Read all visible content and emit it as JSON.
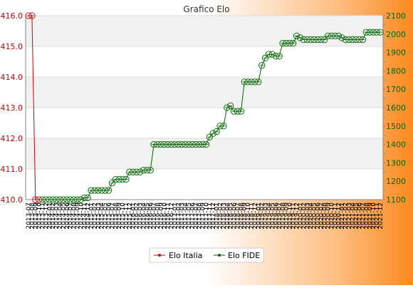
{
  "chart_data": {
    "type": "line",
    "title": "Grafico Elo",
    "left_axis": {
      "ylim": [
        410.0,
        416.0
      ],
      "ticks": [
        "410.0",
        "411.0",
        "412.0",
        "413.0",
        "414.0",
        "415.0",
        "416.0"
      ]
    },
    "right_axis": {
      "ylim": [
        1100,
        2100
      ],
      "ticks": [
        "1100",
        "1200",
        "1300",
        "1400",
        "1500",
        "1600",
        "1700",
        "1800",
        "1900",
        "2000",
        "2100"
      ]
    },
    "x_tick_labels": [
      "2013-07",
      "2013-08",
      "2013-09",
      "2013-10",
      "2013-11",
      "2013-12",
      "2014-01",
      "2014-02",
      "2014-03",
      "2014-04",
      "2014-05",
      "2014-06",
      "2014-07",
      "2014-08",
      "2014-09",
      "2014-10",
      "2014-11",
      "2014-12",
      "2015-01",
      "2015-02",
      "2015-03",
      "2015-04",
      "2015-05",
      "2015-06",
      "2015-07",
      "2015-08",
      "2015-09",
      "2015-10",
      "2015-11",
      "2015-12",
      "2016-01",
      "2016-02",
      "2016-03",
      "2016-04",
      "2016-05",
      "2016-06",
      "2016-07",
      "2016-08",
      "2016-09",
      "2016-10",
      "2016-11",
      "2016-12",
      "2017-01",
      "2017-02",
      "2017-03",
      "2017-04",
      "2017-05",
      "2017-06",
      "2017-07",
      "2017-08",
      "2017-09",
      "2017-10",
      "2017-11",
      "2017-12",
      "2018-01",
      "2018-02",
      "2018-03",
      "2018-04",
      "2018-05",
      "2018-06",
      "2018-07",
      "2018-08",
      "2018-09",
      "2018-10",
      "2018-11",
      "2018-12",
      "2019-01",
      "2019-02",
      "2019-03",
      "2019-04",
      "2019-05",
      "2019-06",
      "2019-07",
      "2019-08",
      "2019-09",
      "2019-10",
      "2019-11",
      "2019-12",
      "2020-01",
      "2020-02",
      "2020-03",
      "2020-04",
      "2020-05",
      "2020-06",
      "2020-07",
      "2020-08",
      "2020-09",
      "2020-10",
      "2020-11",
      "2020-12",
      "2021-01",
      "2021-02",
      "2021-03",
      "2021-04",
      "2021-05",
      "2021-06",
      "2021-07",
      "2021-08",
      "2021-09",
      "2021-10",
      "2021-11",
      "2021-12"
    ],
    "series": [
      {
        "name": "Elo Italia",
        "axis": "left",
        "color": "#cc0000",
        "x_index": [
          0,
          1,
          2,
          3
        ],
        "values": [
          416.0,
          416.0,
          410.0,
          410.0
        ]
      },
      {
        "name": "Elo FIDE",
        "axis": "right",
        "color": "#006600",
        "x_index": [
          4,
          5,
          6,
          7,
          8,
          9,
          10,
          11,
          12,
          13,
          14,
          15,
          16,
          17,
          18,
          19,
          20,
          21,
          22,
          23,
          24,
          25,
          26,
          27,
          28,
          29,
          30,
          31,
          32,
          33,
          34,
          35,
          36,
          37,
          38,
          39,
          40,
          41,
          42,
          43,
          44,
          45,
          46,
          47,
          48,
          49,
          50,
          51,
          52,
          53,
          54,
          55,
          56,
          57,
          58,
          59,
          60,
          61,
          62,
          63,
          64,
          65,
          66,
          67,
          68,
          69,
          70,
          71,
          72,
          73,
          74,
          75,
          76,
          77,
          78,
          79,
          80,
          81,
          82,
          83,
          84,
          85,
          86,
          87,
          88,
          89,
          90,
          91,
          92,
          93,
          94,
          95,
          96,
          97,
          98,
          99,
          100,
          101
        ],
        "values": [
          1100,
          1100,
          1100,
          1100,
          1100,
          1100,
          1100,
          1100,
          1100,
          1100,
          1100,
          1100,
          1110,
          1110,
          1150,
          1150,
          1150,
          1150,
          1150,
          1150,
          1190,
          1210,
          1210,
          1210,
          1210,
          1250,
          1250,
          1250,
          1250,
          1260,
          1260,
          1260,
          1400,
          1400,
          1400,
          1400,
          1400,
          1400,
          1400,
          1400,
          1400,
          1400,
          1400,
          1400,
          1400,
          1400,
          1400,
          1400,
          1440,
          1460,
          1470,
          1500,
          1500,
          1600,
          1610,
          1580,
          1580,
          1580,
          1740,
          1740,
          1740,
          1740,
          1740,
          1830,
          1870,
          1890,
          1890,
          1880,
          1880,
          1950,
          1950,
          1950,
          1950,
          1990,
          1980,
          1970,
          1970,
          1970,
          1970,
          1970,
          1970,
          1970,
          1990,
          1990,
          1990,
          1990,
          1980,
          1970,
          1970,
          1970,
          1970,
          1970,
          1970,
          2010,
          2010,
          2010,
          2010,
          2010
        ]
      }
    ],
    "legend_position": "bottom-center",
    "grid": true
  }
}
